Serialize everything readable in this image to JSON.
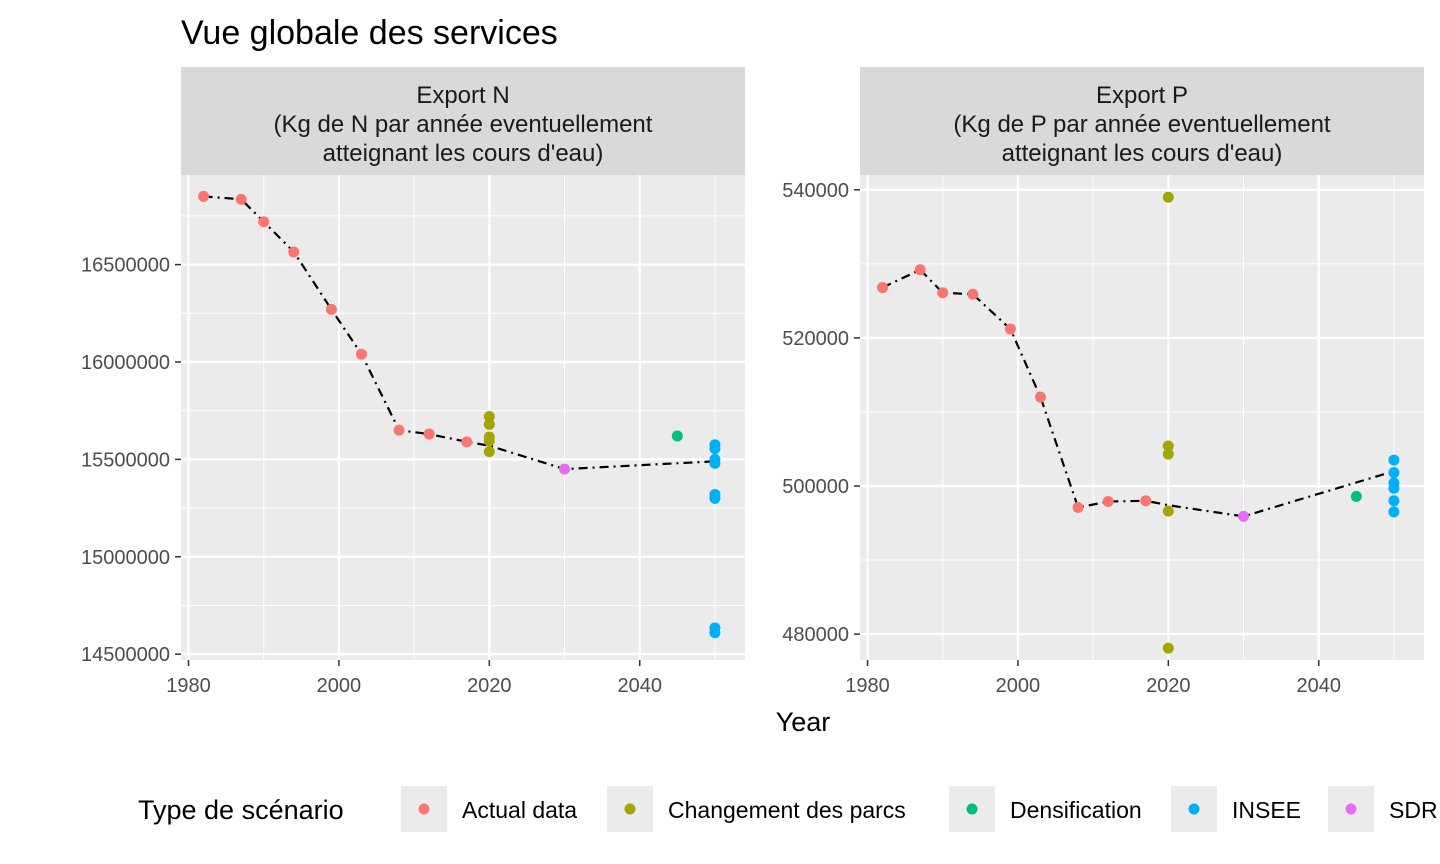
{
  "chart_data": {
    "type": "scatter",
    "title": "Vue globale des services",
    "xlabel": "Year",
    "legend": {
      "title": "Type de scénario",
      "position": "bottom",
      "entries": [
        {
          "name": "Actual data",
          "color": "#F8766D"
        },
        {
          "name": "Changement des parcs",
          "color": "#A3A500"
        },
        {
          "name": "Densification",
          "color": "#00BF7D"
        },
        {
          "name": "INSEE",
          "color": "#00B0F6"
        },
        {
          "name": "SDR",
          "color": "#E76BF3"
        }
      ]
    },
    "line_style": {
      "color": "#000000",
      "dash": "dot-dash"
    },
    "panels": [
      {
        "id": "N",
        "strip": [
          "Export N",
          "(Kg de N par année eventuellement",
          "atteignant les cours d'eau)"
        ],
        "xlim": [
          1979,
          2054
        ],
        "ylim": [
          14470000,
          16960000
        ],
        "xticks": [
          1980,
          2000,
          2020,
          2040
        ],
        "xtick_labels": [
          "1980",
          "2000",
          "2020",
          "2040"
        ],
        "yticks": [
          14500000,
          15000000,
          15500000,
          16000000,
          16500000
        ],
        "ytick_labels": [
          "14500000",
          "15000000",
          "15500000",
          "16000000",
          "16500000"
        ],
        "series": [
          {
            "name": "Actual data",
            "points": [
              [
                1982,
                16850000
              ],
              [
                1987,
                16835000
              ],
              [
                1990,
                16720000
              ],
              [
                1994,
                16565000
              ],
              [
                1999,
                16270000
              ],
              [
                2003,
                16040000
              ],
              [
                2008,
                15650000
              ],
              [
                2012,
                15630000
              ],
              [
                2017,
                15590000
              ]
            ]
          },
          {
            "name": "Changement des parcs",
            "points": [
              [
                2020,
                15720000
              ],
              [
                2020,
                15680000
              ],
              [
                2020,
                15615000
              ],
              [
                2020,
                15595000
              ],
              [
                2020,
                15540000
              ]
            ]
          },
          {
            "name": "Densification",
            "points": [
              [
                2045,
                15620000
              ]
            ]
          },
          {
            "name": "INSEE",
            "points": [
              [
                2050,
                15575000
              ],
              [
                2050,
                15555000
              ],
              [
                2050,
                15500000
              ],
              [
                2050,
                15480000
              ],
              [
                2050,
                15320000
              ],
              [
                2050,
                15300000
              ],
              [
                2050,
                14635000
              ],
              [
                2050,
                14610000
              ]
            ]
          },
          {
            "name": "SDR",
            "points": [
              [
                2030,
                15450000
              ]
            ]
          }
        ],
        "trend_line": [
          [
            1982,
            16850000
          ],
          [
            1987,
            16835000
          ],
          [
            1990,
            16720000
          ],
          [
            1994,
            16565000
          ],
          [
            1999,
            16270000
          ],
          [
            2003,
            16040000
          ],
          [
            2008,
            15650000
          ],
          [
            2012,
            15630000
          ],
          [
            2017,
            15590000
          ],
          [
            2020,
            15570000
          ],
          [
            2030,
            15450000
          ],
          [
            2050,
            15490000
          ]
        ]
      },
      {
        "id": "P",
        "strip": [
          "Export P",
          "(Kg de P par année eventuellement",
          "atteignant les cours d'eau)"
        ],
        "xlim": [
          1979,
          2054
        ],
        "ylim": [
          476500,
          542000
        ],
        "xticks": [
          1980,
          2000,
          2020,
          2040
        ],
        "xtick_labels": [
          "1980",
          "2000",
          "2020",
          "2040"
        ],
        "yticks": [
          480000,
          500000,
          520000,
          540000
        ],
        "ytick_labels": [
          "480000",
          "500000",
          "520000",
          "540000"
        ],
        "series": [
          {
            "name": "Actual data",
            "points": [
              [
                1982,
                526800
              ],
              [
                1987,
                529200
              ],
              [
                1990,
                526100
              ],
              [
                1994,
                525900
              ],
              [
                1999,
                521200
              ],
              [
                2003,
                512000
              ],
              [
                2008,
                497100
              ],
              [
                2012,
                497900
              ],
              [
                2017,
                498000
              ]
            ]
          },
          {
            "name": "Changement des parcs",
            "points": [
              [
                2020,
                539000
              ],
              [
                2020,
                505400
              ],
              [
                2020,
                504300
              ],
              [
                2020,
                496600
              ],
              [
                2020,
                478100
              ]
            ]
          },
          {
            "name": "Densification",
            "points": [
              [
                2045,
                498600
              ]
            ]
          },
          {
            "name": "INSEE",
            "points": [
              [
                2050,
                503500
              ],
              [
                2050,
                501800
              ],
              [
                2050,
                500400
              ],
              [
                2050,
                499700
              ],
              [
                2050,
                498000
              ],
              [
                2050,
                496500
              ]
            ]
          },
          {
            "name": "SDR",
            "points": [
              [
                2030,
                495900
              ]
            ]
          }
        ],
        "trend_line": [
          [
            1982,
            526800
          ],
          [
            1987,
            529200
          ],
          [
            1990,
            526100
          ],
          [
            1994,
            525900
          ],
          [
            1999,
            521200
          ],
          [
            2003,
            512000
          ],
          [
            2008,
            497100
          ],
          [
            2012,
            497900
          ],
          [
            2017,
            498000
          ],
          [
            2020,
            497400
          ],
          [
            2030,
            495900
          ],
          [
            2050,
            502000
          ]
        ]
      }
    ]
  }
}
